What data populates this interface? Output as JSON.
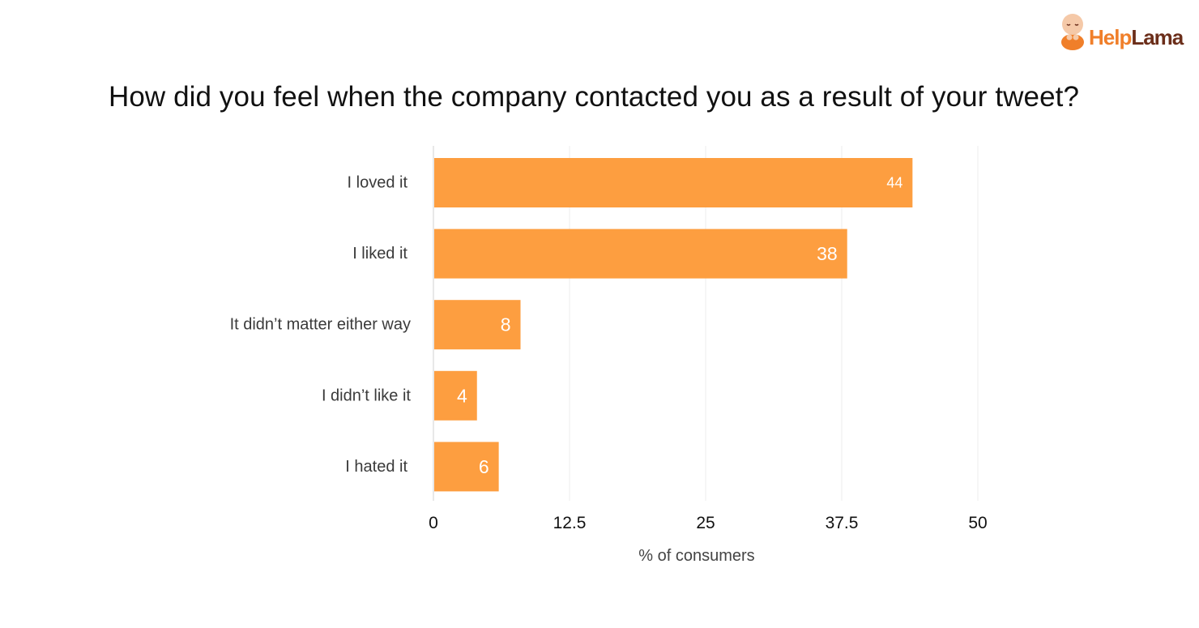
{
  "logo": {
    "text_help": "Help",
    "text_lama": "Lama",
    "colors": {
      "orange": "#f07f2a",
      "brown": "#6b2e1a",
      "skin": "#f5c9a8"
    }
  },
  "chart_data": {
    "type": "bar",
    "orientation": "horizontal",
    "title": "How did you feel when the company contacted you as a result of your tweet?",
    "xlabel": "% of consumers",
    "ylabel": "",
    "categories": [
      "I loved it",
      "I liked it",
      "It didn’t matter either way",
      "I didn’t like it",
      "I hated it"
    ],
    "values": [
      44,
      38,
      8,
      4,
      6
    ],
    "xlim": [
      0,
      50
    ],
    "ticks": [
      0,
      12.5,
      25,
      37.5,
      50
    ],
    "tick_labels": [
      "0",
      "12.5",
      "25",
      "37.5",
      "50"
    ],
    "grid": true,
    "bar_color": "#fd9e40",
    "grid_color": "#efefef",
    "value_label_color": "#ffffff"
  }
}
